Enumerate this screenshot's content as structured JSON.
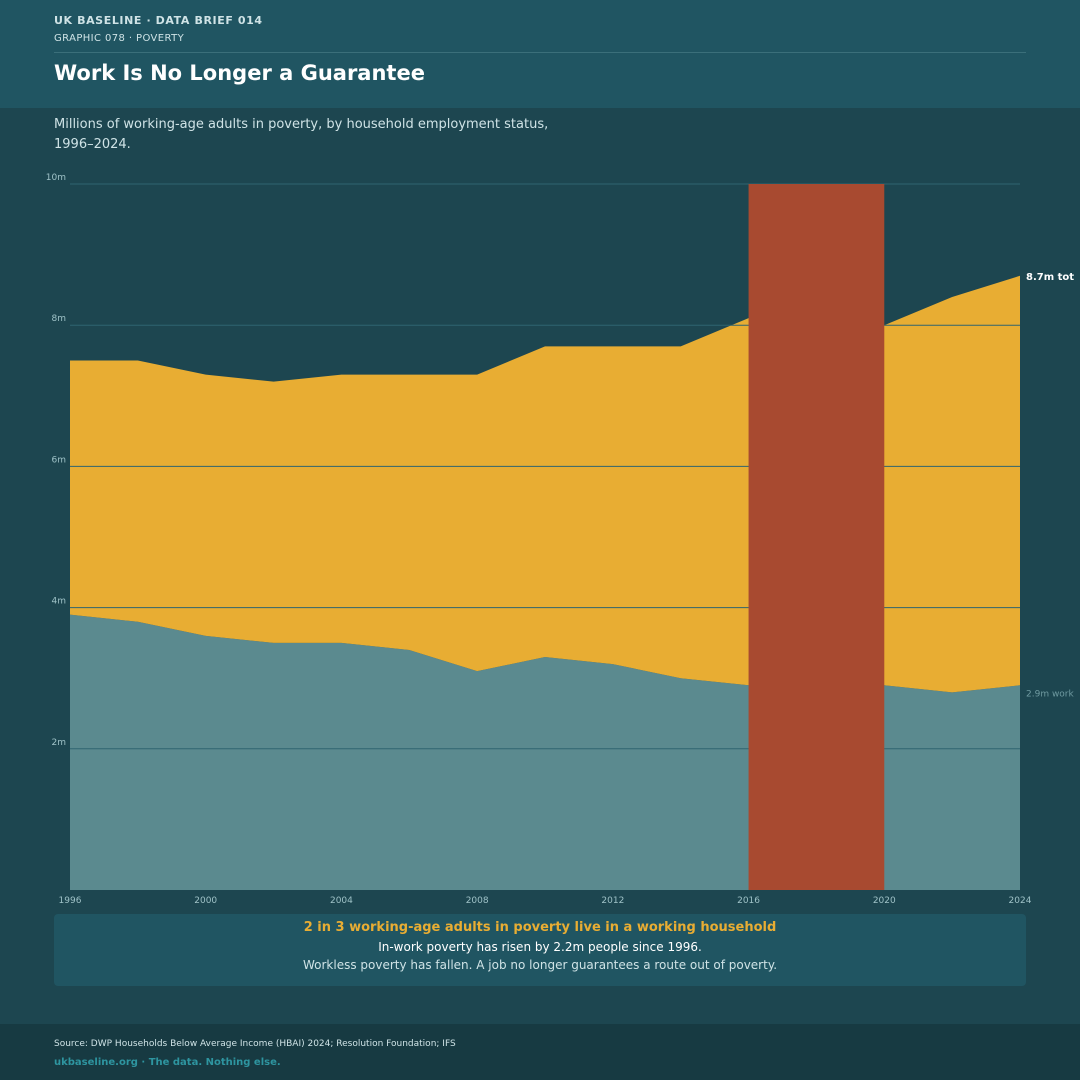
{
  "header": {
    "kicker": "UK BASELINE  ·  DATA BRIEF 014",
    "subkicker": "GRAPHIC 078  ·  POVERTY",
    "title": "Work Is No Longer a Guarantee"
  },
  "subtitle": "Millions of working-age adults in poverty, by household employment status, 1996–2024.",
  "chart_data": {
    "type": "area",
    "stacked": true,
    "x": [
      1996,
      1998,
      2000,
      2002,
      2004,
      2006,
      2008,
      2010,
      2012,
      2014,
      2016,
      2018,
      2020,
      2022,
      2024
    ],
    "series": [
      {
        "color": "#5b8a8f",
        "values": [
          3.9,
          3.8,
          3.6,
          3.5,
          3.5,
          3.4,
          3.1,
          3.3,
          3.2,
          3.0,
          2.9,
          2.9,
          2.9,
          2.8,
          2.9
        ]
      },
      {
        "color": "#e8ad33",
        "values": [
          3.6,
          3.7,
          3.7,
          3.7,
          3.8,
          3.9,
          4.2,
          4.4,
          4.5,
          4.7,
          5.2,
          5.3,
          5.1,
          5.6,
          5.8
        ]
      }
    ],
    "highlight": {
      "from": 2016,
      "to": 2020,
      "color": "#a84a30"
    },
    "ylim": [
      0,
      10
    ],
    "yticks": [
      2,
      4,
      6,
      8,
      10
    ],
    "ytick_labels": [
      "2m",
      "4m",
      "6m",
      "8m",
      "10m"
    ],
    "xticks": [
      1996,
      2000,
      2004,
      2008,
      2012,
      2016,
      2020,
      2024
    ],
    "xtick_labels": [
      "1996",
      "2000",
      "2004",
      "2008",
      "2012",
      "2016",
      "2020",
      "2024"
    ],
    "grid": true,
    "end_labels": {
      "total": "8.7m tot",
      "workless": "2.9m work"
    }
  },
  "callout": {
    "headline": "2 in 3 working-age adults in poverty live in a working household",
    "line1": "In-work poverty has risen by 2.2m people since 1996.",
    "line2": "Workless poverty has fallen. A job no longer guarantees a route out of poverty."
  },
  "footer": {
    "source": "Source: DWP Households Below Average Income (HBAI) 2024; Resolution Foundation; IFS",
    "brand": "ukbaseline.org  ·  The data. Nothing else."
  },
  "colors": {
    "background": "#1d4650",
    "header": "#205562",
    "accent": "#e8ad33",
    "grid": "#3b6f7a"
  }
}
